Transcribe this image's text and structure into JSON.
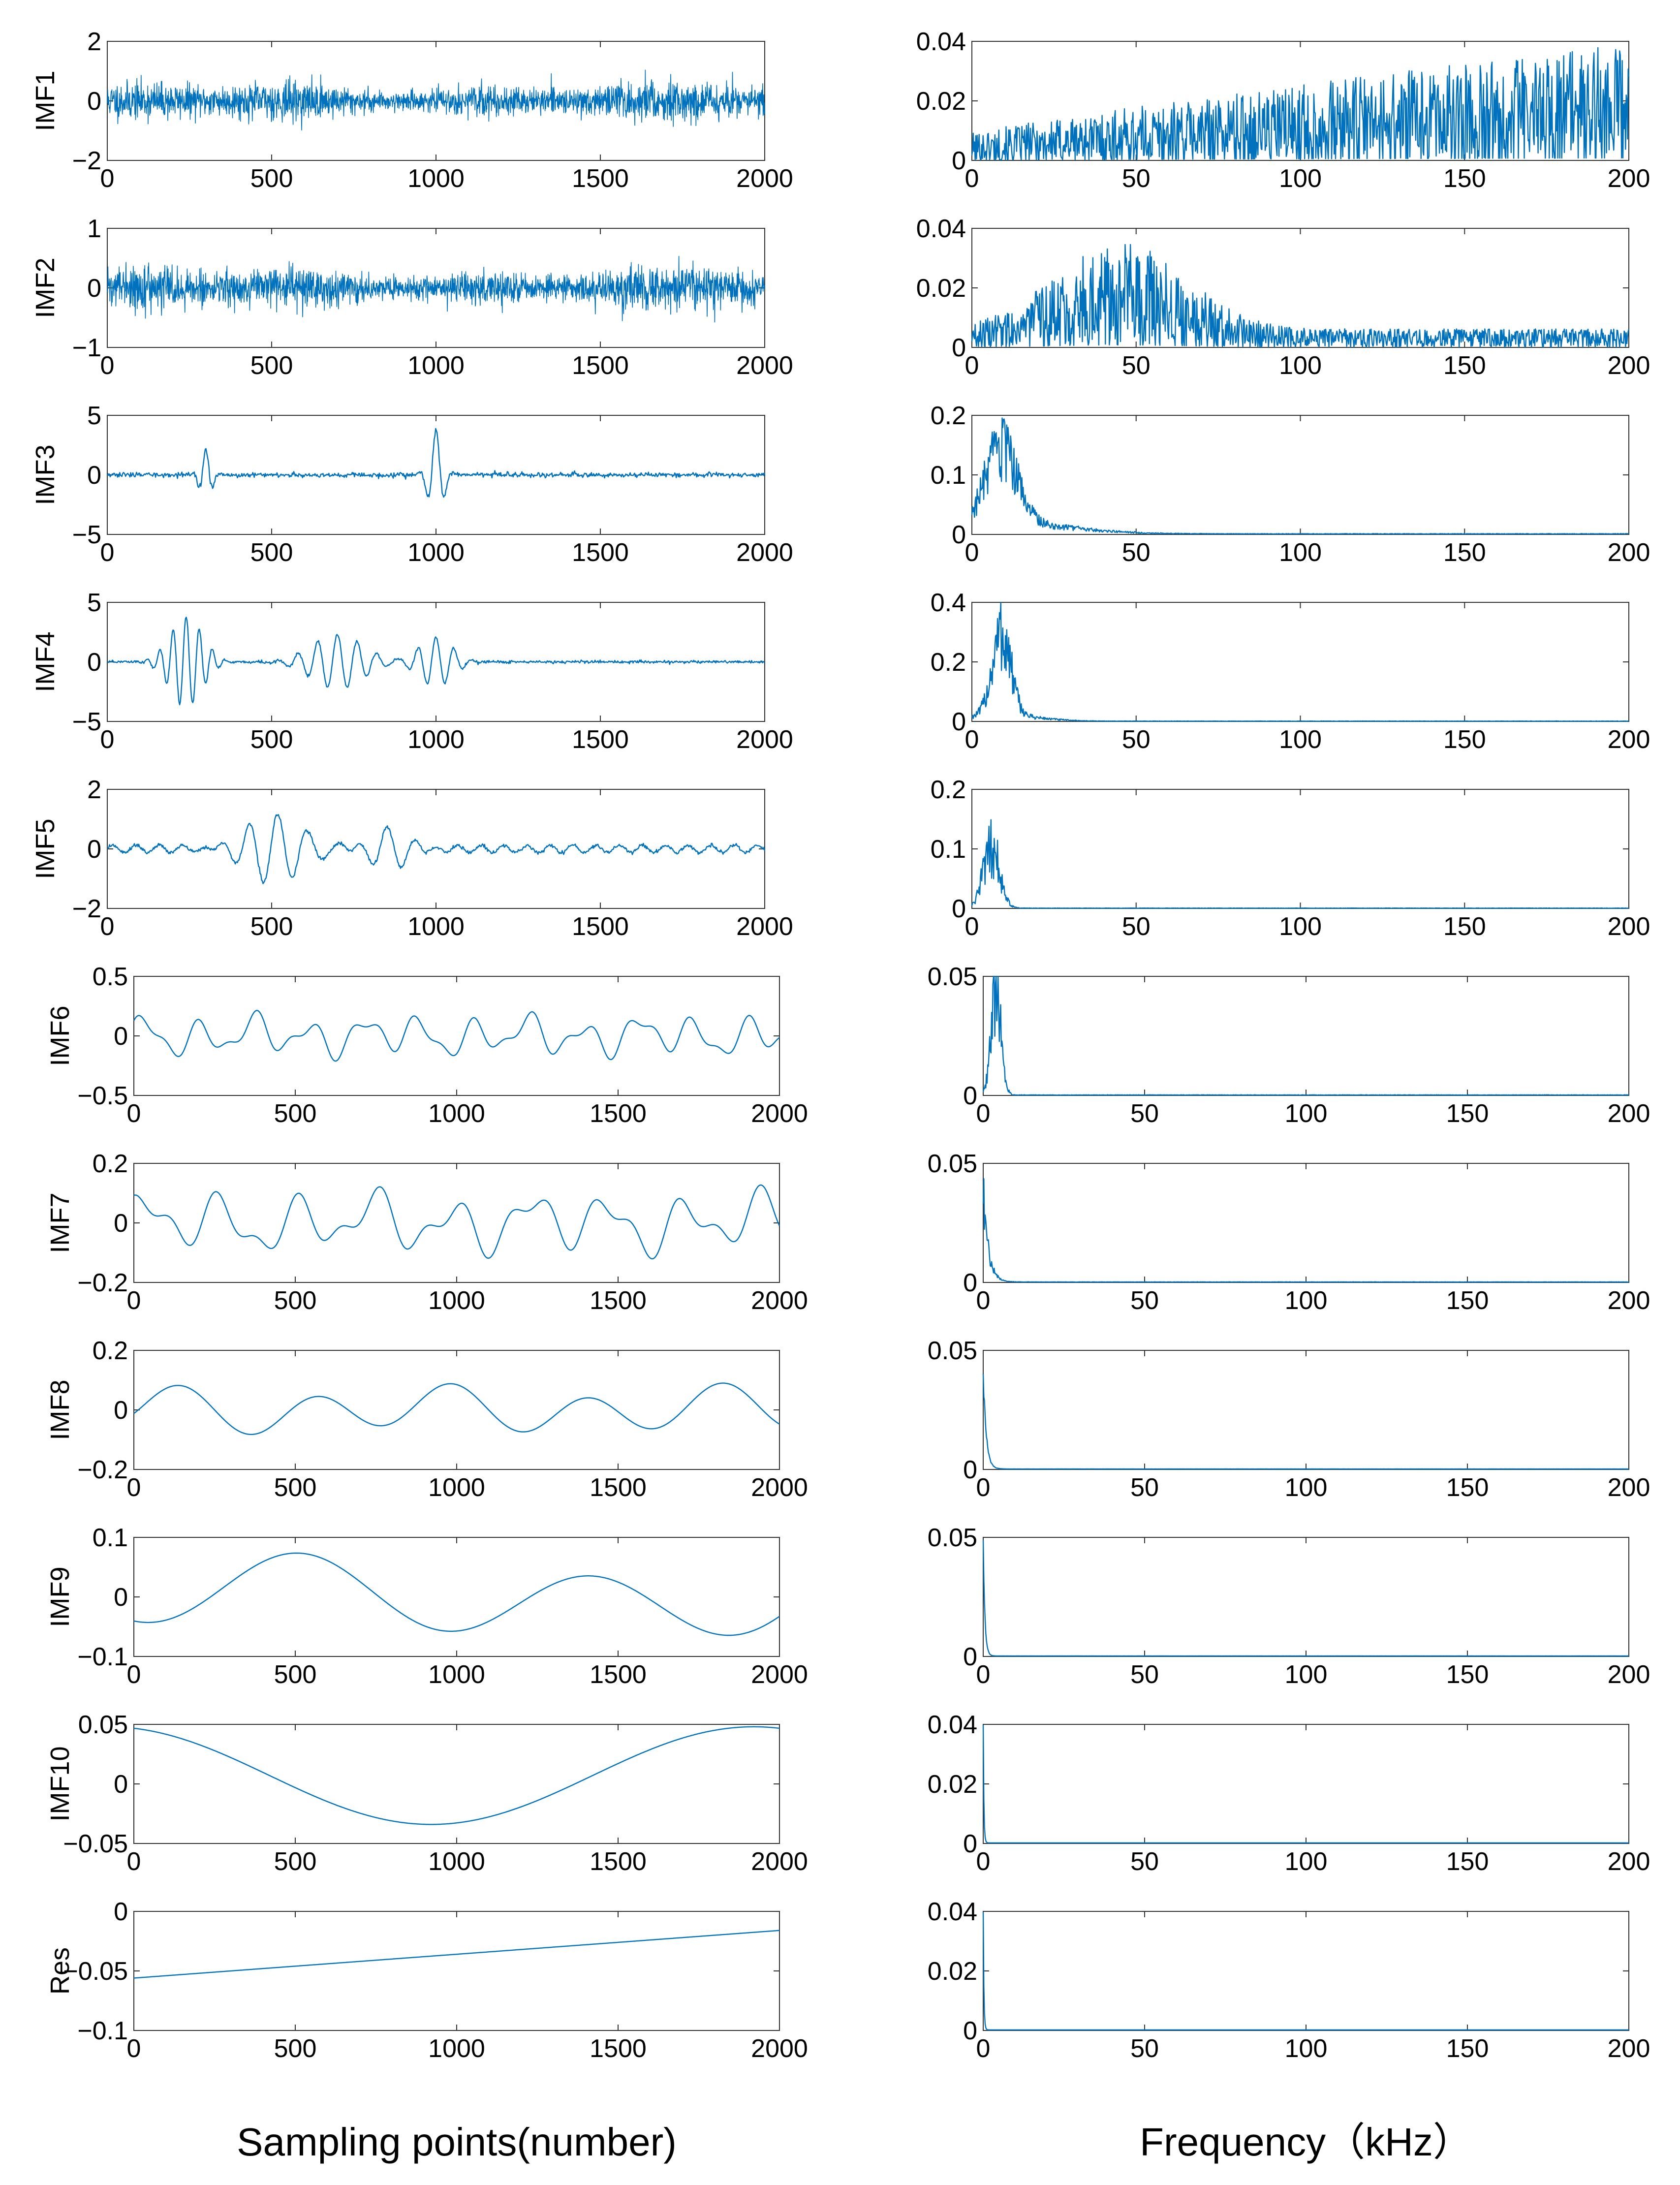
{
  "colors": {
    "line": "#0072BD",
    "axis": "#333333"
  },
  "xlabels": {
    "left": "Sampling points(number)",
    "right": "Frequency（kHz）"
  },
  "chart_data": [
    {
      "panel": "left",
      "type": "line",
      "ylabel": "IMF1",
      "xlim": [
        0,
        2000
      ],
      "ylim": [
        -2,
        2
      ],
      "yticks": [
        -2,
        0,
        2
      ],
      "xticks": [
        0,
        500,
        1000,
        1500,
        2000
      ],
      "xlabel": "",
      "signal": {
        "kind": "noise",
        "amp": 0.55,
        "base": 0,
        "seed": 11
      }
    },
    {
      "panel": "left",
      "type": "line",
      "ylabel": "IMF2",
      "xlim": [
        0,
        2000
      ],
      "ylim": [
        -1,
        1
      ],
      "yticks": [
        -1,
        0,
        1
      ],
      "xticks": [
        0,
        500,
        1000,
        1500,
        2000
      ],
      "xlabel": "",
      "signal": {
        "kind": "noise",
        "amp": 0.3,
        "base": 0,
        "seed": 22
      }
    },
    {
      "panel": "left",
      "type": "line",
      "ylabel": "IMF3",
      "xlim": [
        0,
        2000
      ],
      "ylim": [
        -5,
        5
      ],
      "yticks": [
        -5,
        0,
        5
      ],
      "xticks": [
        0,
        500,
        1000,
        1500,
        2000
      ],
      "xlabel": "",
      "signal": {
        "kind": "bursts",
        "base": 0,
        "noise": 0.2,
        "seed": 33,
        "bursts": [
          {
            "c": 300,
            "w": 25,
            "amp": 2.1,
            "period": 45
          },
          {
            "c": 1000,
            "w": 30,
            "amp": 3.8,
            "period": 55
          }
        ]
      }
    },
    {
      "panel": "left",
      "type": "line",
      "ylabel": "IMF4",
      "xlim": [
        0,
        2000
      ],
      "ylim": [
        -5,
        5
      ],
      "yticks": [
        -5,
        0,
        5
      ],
      "xticks": [
        0,
        500,
        1000,
        1500,
        2000
      ],
      "xlabel": "",
      "signal": {
        "kind": "bursts",
        "base": 0,
        "noise": 0.12,
        "seed": 44,
        "bursts": [
          {
            "c": 240,
            "w": 70,
            "amp": 3.8,
            "period": 40
          },
          {
            "c": 700,
            "w": 110,
            "amp": 2.3,
            "period": 60
          },
          {
            "c": 1000,
            "w": 70,
            "amp": 2.1,
            "period": 55
          }
        ]
      }
    },
    {
      "panel": "left",
      "type": "line",
      "ylabel": "IMF5",
      "xlim": [
        0,
        2000
      ],
      "ylim": [
        -2,
        2
      ],
      "yticks": [
        -2,
        0,
        2
      ],
      "xticks": [
        0,
        500,
        1000,
        1500,
        2000
      ],
      "xlabel": "",
      "signal": {
        "kind": "bursts",
        "base": 0,
        "noise": 0.06,
        "seed": 55,
        "carrier": {
          "amp": 0.12,
          "period": 70
        },
        "bursts": [
          {
            "c": 520,
            "w": 140,
            "amp": 1.1,
            "period": 90
          },
          {
            "c": 850,
            "w": 90,
            "amp": 0.65,
            "period": 95
          }
        ]
      }
    },
    {
      "panel": "left",
      "type": "line",
      "ylabel": "IMF6",
      "xlim": [
        0,
        2000
      ],
      "ylim": [
        -0.5,
        0.5
      ],
      "yticks": [
        -0.5,
        0,
        0.5
      ],
      "xticks": [
        0,
        500,
        1000,
        1500,
        2000
      ],
      "xlabel": "",
      "signal": {
        "kind": "wave",
        "base": 0,
        "comps": [
          {
            "amp": 0.12,
            "period": 170,
            "phase": 0.3
          },
          {
            "amp": 0.06,
            "period": 95,
            "phase": 1.2
          },
          {
            "amp": 0.04,
            "period": 410,
            "phase": 2.0
          }
        ]
      }
    },
    {
      "panel": "left",
      "type": "line",
      "ylabel": "IMF7",
      "xlim": [
        0,
        2000
      ],
      "ylim": [
        -0.2,
        0.2
      ],
      "yticks": [
        -0.2,
        0,
        0.2
      ],
      "xticks": [
        0,
        500,
        1000,
        1500,
        2000
      ],
      "xlabel": "",
      "signal": {
        "kind": "wave",
        "base": 0,
        "comps": [
          {
            "amp": 0.07,
            "period": 240,
            "phase": 0.8
          },
          {
            "amp": 0.04,
            "period": 130,
            "phase": 2.1
          },
          {
            "amp": 0.02,
            "period": 600,
            "phase": 0.4
          }
        ]
      }
    },
    {
      "panel": "left",
      "type": "line",
      "ylabel": "IMF8",
      "xlim": [
        0,
        2000
      ],
      "ylim": [
        -0.2,
        0.2
      ],
      "yticks": [
        -0.2,
        0,
        0.2
      ],
      "xticks": [
        0,
        500,
        1000,
        1500,
        2000
      ],
      "xlabel": "",
      "signal": {
        "kind": "wave",
        "base": 0,
        "comps": [
          {
            "amp": 0.065,
            "period": 420,
            "phase": -0.6
          },
          {
            "amp": 0.025,
            "period": 900,
            "phase": 1.4
          }
        ]
      }
    },
    {
      "panel": "left",
      "type": "line",
      "ylabel": "IMF9",
      "xlim": [
        0,
        2000
      ],
      "ylim": [
        -0.1,
        0.1
      ],
      "yticks": [
        -0.1,
        0,
        0.1
      ],
      "xticks": [
        0,
        500,
        1000,
        1500,
        2000
      ],
      "xlabel": "",
      "signal": {
        "kind": "wave",
        "base": 0,
        "comps": [
          {
            "amp": 0.055,
            "period": 900,
            "phase": -2.0
          },
          {
            "amp": 0.02,
            "period": 2200,
            "phase": 0.5
          }
        ]
      }
    },
    {
      "panel": "left",
      "type": "line",
      "ylabel": "IMF10",
      "xlim": [
        0,
        2000
      ],
      "ylim": [
        -0.05,
        0.05
      ],
      "yticks": [
        -0.05,
        0,
        0.05
      ],
      "xticks": [
        0,
        500,
        1000,
        1500,
        2000
      ],
      "xlabel": "",
      "signal": {
        "kind": "wave",
        "base": 0.007,
        "comps": [
          {
            "amp": 0.041,
            "period": 2000,
            "phase": 1.82
          }
        ]
      }
    },
    {
      "panel": "left",
      "type": "line",
      "ylabel": "Res",
      "xlim": [
        0,
        2000
      ],
      "ylim": [
        -0.1,
        0
      ],
      "yticks": [
        -0.1,
        -0.05,
        0
      ],
      "xticks": [
        0,
        500,
        1000,
        1500,
        2000
      ],
      "xlabel": "Sampling points(number)",
      "signal": {
        "kind": "linear",
        "y0": -0.056,
        "y1": -0.016
      }
    },
    {
      "panel": "right",
      "type": "line",
      "ylabel": "",
      "xlim": [
        0,
        200
      ],
      "ylim": [
        0,
        0.04
      ],
      "yticks": [
        0,
        0.02,
        0.04
      ],
      "xticks": [
        0,
        50,
        100,
        150,
        200
      ],
      "xlabel": "",
      "spectrum": {
        "kind": "rising",
        "start": 0.004,
        "end": 0.017,
        "jitter": 1.1,
        "seed": 101
      }
    },
    {
      "panel": "right",
      "type": "line",
      "ylabel": "",
      "xlim": [
        0,
        200
      ],
      "ylim": [
        0,
        0.04
      ],
      "yticks": [
        0,
        0.02,
        0.04
      ],
      "xticks": [
        0,
        50,
        100,
        150,
        200
      ],
      "xlabel": "",
      "spectrum": {
        "kind": "peak",
        "peak": 0.014,
        "center": 45,
        "width": 28,
        "floor": 0.003,
        "jitter": 0.9,
        "seed": 102
      }
    },
    {
      "panel": "right",
      "type": "line",
      "ylabel": "",
      "xlim": [
        0,
        200
      ],
      "ylim": [
        0,
        0.2
      ],
      "yticks": [
        0,
        0.1,
        0.2
      ],
      "xticks": [
        0,
        50,
        100,
        150,
        200
      ],
      "xlabel": "",
      "spectrum": {
        "kind": "peak",
        "peak": 0.12,
        "center": 9,
        "width": 7,
        "floor": 0.001,
        "tail": 0.018,
        "tailWidth": 28,
        "jitter": 0.35,
        "seed": 103
      }
    },
    {
      "panel": "right",
      "type": "line",
      "ylabel": "",
      "xlim": [
        0,
        200
      ],
      "ylim": [
        0,
        0.4
      ],
      "yticks": [
        0,
        0.2,
        0.4
      ],
      "xticks": [
        0,
        50,
        100,
        150,
        200
      ],
      "xlabel": "",
      "spectrum": {
        "kind": "peak",
        "peak": 0.27,
        "center": 9,
        "width": 4,
        "floor": 0.001,
        "tail": 0.02,
        "tailWidth": 15,
        "jitter": 0.4,
        "seed": 104
      }
    },
    {
      "panel": "right",
      "type": "line",
      "ylabel": "",
      "xlim": [
        0,
        200
      ],
      "ylim": [
        0,
        0.2
      ],
      "yticks": [
        0,
        0.1,
        0.2
      ],
      "xticks": [
        0,
        50,
        100,
        150,
        200
      ],
      "xlabel": "",
      "spectrum": {
        "kind": "peak",
        "peak": 0.1,
        "center": 6,
        "width": 3.5,
        "floor": 0.0005,
        "jitter": 0.45,
        "seed": 105
      }
    },
    {
      "panel": "right",
      "type": "line",
      "ylabel": "",
      "xlim": [
        0,
        200
      ],
      "ylim": [
        0,
        0.05
      ],
      "yticks": [
        0,
        0.05
      ],
      "xticks": [
        0,
        50,
        100,
        150,
        200
      ],
      "xlabel": "",
      "spectrum": {
        "kind": "peak",
        "peak": 0.042,
        "center": 4,
        "width": 2.2,
        "floor": 0.0002,
        "jitter": 0.35,
        "seed": 106
      }
    },
    {
      "panel": "right",
      "type": "line",
      "ylabel": "",
      "xlim": [
        0,
        200
      ],
      "ylim": [
        0,
        0.05
      ],
      "yticks": [
        0,
        0.05
      ],
      "xticks": [
        0,
        50,
        100,
        150,
        200
      ],
      "xlabel": "",
      "spectrum": {
        "kind": "decay",
        "peak": 0.038,
        "decay": 1.6,
        "floor": 0.0002,
        "jitter": 0.25,
        "seed": 107
      }
    },
    {
      "panel": "right",
      "type": "line",
      "ylabel": "",
      "xlim": [
        0,
        200
      ],
      "ylim": [
        0,
        0.05
      ],
      "yticks": [
        0,
        0.05
      ],
      "xticks": [
        0,
        50,
        100,
        150,
        200
      ],
      "xlabel": "",
      "spectrum": {
        "kind": "decay",
        "peak": 0.042,
        "decay": 0.9,
        "floor": 0.0002,
        "jitter": 0.1,
        "seed": 108
      }
    },
    {
      "panel": "right",
      "type": "line",
      "ylabel": "",
      "xlim": [
        0,
        200
      ],
      "ylim": [
        0,
        0.05
      ],
      "yticks": [
        0,
        0.05
      ],
      "xticks": [
        0,
        50,
        100,
        150,
        200
      ],
      "xlabel": "",
      "spectrum": {
        "kind": "decay",
        "peak": 0.05,
        "decay": 0.5,
        "floor": 0.0002,
        "jitter": 0.05,
        "seed": 109
      }
    },
    {
      "panel": "right",
      "type": "line",
      "ylabel": "",
      "xlim": [
        0,
        200
      ],
      "ylim": [
        0,
        0.04
      ],
      "yticks": [
        0,
        0.02,
        0.04
      ],
      "xticks": [
        0,
        50,
        100,
        150,
        200
      ],
      "xlabel": "",
      "spectrum": {
        "kind": "decay",
        "peak": 0.04,
        "decay": 0.2,
        "floor": 0.0002,
        "jitter": 0.02,
        "seed": 110
      }
    },
    {
      "panel": "right",
      "type": "line",
      "ylabel": "",
      "xlim": [
        0,
        200
      ],
      "ylim": [
        0,
        0.04
      ],
      "yticks": [
        0,
        0.02,
        0.04
      ],
      "xticks": [
        0,
        50,
        100,
        150,
        200
      ],
      "xlabel": "Frequency（kHz）",
      "spectrum": {
        "kind": "decay",
        "peak": 0.04,
        "decay": 0.2,
        "floor": 0.0002,
        "jitter": 0.02,
        "seed": 111
      }
    }
  ]
}
